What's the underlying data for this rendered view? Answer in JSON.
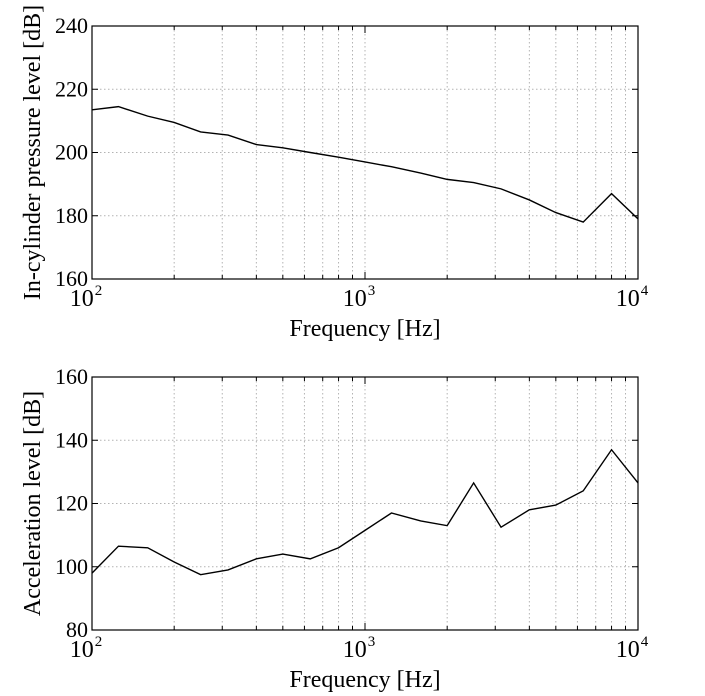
{
  "chart_data": [
    {
      "type": "line",
      "xscale": "log",
      "xlim": [
        100,
        10000
      ],
      "ylim": [
        160,
        240
      ],
      "yticks": [
        160,
        180,
        200,
        220,
        240
      ],
      "xticks": [
        {
          "base": "10",
          "exp": "2"
        },
        {
          "base": "10",
          "exp": "3"
        },
        {
          "base": "10",
          "exp": "4"
        }
      ],
      "grid": true,
      "xlabel": "Frequency [Hz]",
      "ylabel": "In-cylinder pressure level [dB]",
      "x": [
        100,
        125,
        160,
        200,
        250,
        315,
        400,
        500,
        630,
        800,
        1000,
        1250,
        1600,
        2000,
        2500,
        3150,
        4000,
        5000,
        6300,
        8000,
        10000
      ],
      "series": [
        {
          "values": [
            213.5,
            214.5,
            211.5,
            209.5,
            206.5,
            205.5,
            202.5,
            201.5,
            200,
            198.5,
            197,
            195.5,
            193.5,
            191.5,
            190.5,
            188.5,
            185,
            181,
            178,
            187,
            179
          ]
        }
      ]
    },
    {
      "type": "line",
      "xscale": "log",
      "xlim": [
        100,
        10000
      ],
      "ylim": [
        80,
        160
      ],
      "yticks": [
        80,
        100,
        120,
        140,
        160
      ],
      "xticks": [
        {
          "base": "10",
          "exp": "2"
        },
        {
          "base": "10",
          "exp": "3"
        },
        {
          "base": "10",
          "exp": "4"
        }
      ],
      "grid": true,
      "xlabel": "Frequency [Hz]",
      "ylabel": "Acceleration level [dB]",
      "x": [
        100,
        125,
        160,
        200,
        250,
        315,
        400,
        500,
        630,
        800,
        1000,
        1250,
        1600,
        2000,
        2500,
        3150,
        4000,
        5000,
        6300,
        8000,
        10000
      ],
      "series": [
        {
          "values": [
            98,
            106.5,
            106,
            101.5,
            97.5,
            99,
            102.5,
            104,
            102.5,
            106,
            111.5,
            117,
            114.5,
            113,
            126.5,
            112.5,
            118,
            119.5,
            124,
            137,
            126.5
          ]
        }
      ]
    }
  ]
}
